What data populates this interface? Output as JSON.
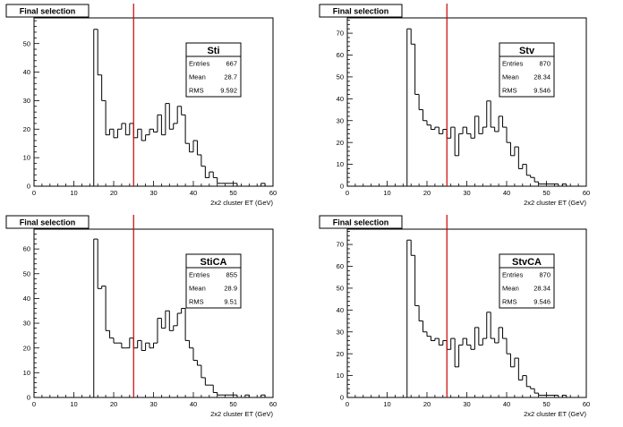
{
  "pad_title": "Final selection",
  "stat_labels": {
    "entries": "Entries",
    "mean": "Mean",
    "rms": "RMS"
  },
  "colors": {
    "histogram": "#000000",
    "cut_line": "#cc0000",
    "frame": "#000000",
    "background": "#ffffff"
  },
  "chart_data": [
    {
      "type": "bar",
      "name": "Sti",
      "title": "Final selection",
      "xlabel": "2x2 cluster ET (GeV)",
      "ylabel": "",
      "xlim": [
        0,
        60
      ],
      "ylim": [
        0,
        59
      ],
      "xticks": [
        0,
        10,
        20,
        30,
        40,
        50,
        60
      ],
      "yticks": [
        0,
        10,
        20,
        30,
        40,
        50
      ],
      "bin_width": 1,
      "bin_start": 15,
      "values": [
        55,
        39,
        30,
        18,
        20,
        17,
        20,
        22,
        18,
        22,
        17,
        20,
        16,
        18,
        20,
        19,
        25,
        18,
        29,
        20,
        22,
        28,
        25,
        15,
        12,
        16,
        11,
        7,
        3,
        5,
        3,
        1,
        1,
        1,
        1,
        1,
        0,
        0,
        0,
        0,
        0,
        0,
        1,
        0,
        0
      ],
      "cut_line_x": 25,
      "stats": {
        "entries": "667",
        "mean": "28.7",
        "rms": "9.592"
      }
    },
    {
      "type": "bar",
      "name": "Stv",
      "title": "Final selection",
      "xlabel": "2x2 cluster ET (GeV)",
      "ylabel": "",
      "xlim": [
        0,
        60
      ],
      "ylim": [
        0,
        77
      ],
      "xticks": [
        0,
        10,
        20,
        30,
        40,
        50,
        60
      ],
      "yticks": [
        0,
        10,
        20,
        30,
        40,
        50,
        60,
        70
      ],
      "bin_width": 1,
      "bin_start": 15,
      "values": [
        72,
        65,
        42,
        35,
        30,
        28,
        26,
        27,
        24,
        26,
        22,
        27,
        14,
        24,
        27,
        24,
        22,
        32,
        24,
        27,
        39,
        27,
        25,
        32,
        27,
        20,
        14,
        18,
        8,
        10,
        5,
        4,
        2,
        1,
        1,
        1,
        1,
        1,
        0,
        1,
        0,
        0,
        0,
        0,
        0
      ],
      "cut_line_x": 25,
      "stats": {
        "entries": "870",
        "mean": "28.34",
        "rms": "9.546"
      }
    },
    {
      "type": "bar",
      "name": "StiCA",
      "title": "Final selection",
      "xlabel": "2x2 cluster ET (GeV)",
      "ylabel": "",
      "xlim": [
        0,
        60
      ],
      "ylim": [
        0,
        68
      ],
      "xticks": [
        0,
        10,
        20,
        30,
        40,
        50,
        60
      ],
      "yticks": [
        0,
        10,
        20,
        30,
        40,
        50,
        60
      ],
      "bin_width": 1,
      "bin_start": 15,
      "values": [
        64,
        44,
        45,
        27,
        24,
        22,
        22,
        20,
        20,
        24,
        20,
        23,
        19,
        22,
        20,
        22,
        32,
        28,
        35,
        27,
        29,
        34,
        36,
        23,
        20,
        15,
        13,
        8,
        5,
        5,
        2,
        1,
        1,
        1,
        1,
        1,
        0,
        0,
        1,
        0,
        0,
        0,
        1,
        0,
        0
      ],
      "cut_line_x": 25,
      "stats": {
        "entries": "855",
        "mean": "28.9",
        "rms": "9.51"
      }
    },
    {
      "type": "bar",
      "name": "StvCA",
      "title": "Final selection",
      "xlabel": "2x2 cluster ET (GeV)",
      "ylabel": "",
      "xlim": [
        0,
        60
      ],
      "ylim": [
        0,
        77
      ],
      "xticks": [
        0,
        10,
        20,
        30,
        40,
        50,
        60
      ],
      "yticks": [
        0,
        10,
        20,
        30,
        40,
        50,
        60,
        70
      ],
      "bin_width": 1,
      "bin_start": 15,
      "values": [
        72,
        65,
        42,
        35,
        30,
        28,
        26,
        27,
        24,
        26,
        22,
        27,
        14,
        24,
        27,
        24,
        22,
        32,
        24,
        27,
        39,
        27,
        25,
        32,
        27,
        20,
        14,
        18,
        8,
        10,
        5,
        4,
        2,
        1,
        1,
        1,
        1,
        1,
        0,
        1,
        0,
        0,
        0,
        0,
        0
      ],
      "cut_line_x": 25,
      "stats": {
        "entries": "870",
        "mean": "28.34",
        "rms": "9.546"
      }
    }
  ]
}
